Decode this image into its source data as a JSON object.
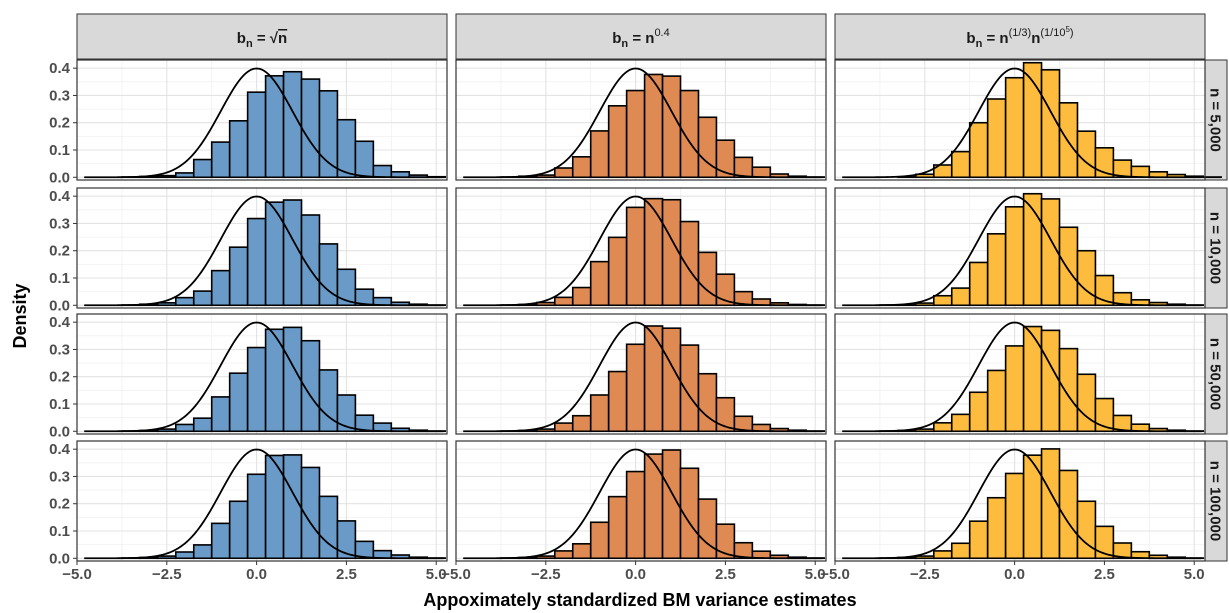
{
  "chart_data": {
    "type": "bar",
    "xlabel": "Appoximately standardized BM variance estimates",
    "ylabel": "Density",
    "xlim": [
      -5.0,
      5.3
    ],
    "ylim": [
      -0.01,
      0.43
    ],
    "x_ticks": [
      -5.0,
      -2.5,
      0.0,
      2.5,
      5.0
    ],
    "x_tick_labels": [
      "−5.0",
      "−2.5",
      "0.0",
      "2.5",
      "5.0"
    ],
    "y_ticks": [
      0.0,
      0.1,
      0.2,
      0.3,
      0.4
    ],
    "y_tick_labels": [
      "0.0",
      "0.1",
      "0.2",
      "0.3",
      "0.4"
    ],
    "bin_width": 0.5,
    "bin_start": -4.75,
    "grid": true,
    "overlay": "standard normal density curve",
    "columns": [
      {
        "strip": {
          "b": "b",
          "sub": "n",
          "eq": " = ",
          "sqrt_sign": "√",
          "sqrt_arg": "n"
        },
        "color": "#6a9ac8"
      },
      {
        "strip": {
          "b": "b",
          "sub": "n",
          "eq": " = ",
          "base": "n",
          "sup": "0.4"
        },
        "color": "#df8a52"
      },
      {
        "strip": {
          "b": "b",
          "sub": "n",
          "eq": " = ",
          "base1": "n",
          "sup1": "(1/3)",
          "base2": "n",
          "sup2a": "(1/10",
          "sup2exp": "5",
          "sup2b": ")"
        },
        "color": "#fdbc3e"
      }
    ],
    "rows": [
      {
        "strip": "n =  5,000"
      },
      {
        "strip": "n = 10,000"
      },
      {
        "strip": "n = 50,000"
      },
      {
        "strip": "n = 100,000"
      }
    ],
    "panels": [
      [
        {
          "densities": [
            0,
            0,
            0.001,
            0.003,
            0.006,
            0.016,
            0.065,
            0.129,
            0.207,
            0.312,
            0.372,
            0.387,
            0.36,
            0.317,
            0.211,
            0.132,
            0.043,
            0.02,
            0.008,
            0.002,
            0,
            0
          ]
        },
        {
          "densities": [
            0,
            0,
            0.001,
            0.004,
            0.008,
            0.034,
            0.075,
            0.17,
            0.262,
            0.318,
            0.377,
            0.371,
            0.318,
            0.22,
            0.136,
            0.073,
            0.037,
            0.012,
            0.004,
            0.001,
            0,
            0
          ]
        },
        {
          "densities": [
            0,
            0,
            0,
            0.002,
            0.011,
            0.045,
            0.094,
            0.2,
            0.287,
            0.365,
            0.42,
            0.394,
            0.273,
            0.169,
            0.108,
            0.063,
            0.04,
            0.02,
            0.01,
            0.004,
            0.001,
            0
          ]
        }
      ],
      [
        {
          "densities": [
            0,
            0,
            0.001,
            0.004,
            0.009,
            0.028,
            0.052,
            0.127,
            0.213,
            0.318,
            0.378,
            0.386,
            0.331,
            0.225,
            0.132,
            0.059,
            0.028,
            0.011,
            0.004,
            0.001,
            0,
            0
          ]
        },
        {
          "densities": [
            0,
            0,
            0.001,
            0.003,
            0.01,
            0.029,
            0.065,
            0.16,
            0.249,
            0.359,
            0.391,
            0.387,
            0.307,
            0.194,
            0.114,
            0.05,
            0.023,
            0.009,
            0.003,
            0.001,
            0,
            0
          ]
        },
        {
          "densities": [
            0,
            0,
            0.001,
            0.002,
            0.008,
            0.035,
            0.063,
            0.157,
            0.262,
            0.361,
            0.409,
            0.39,
            0.286,
            0.2,
            0.109,
            0.046,
            0.02,
            0.01,
            0.004,
            0.001,
            0,
            0
          ]
        }
      ],
      [
        {
          "densities": [
            0,
            0,
            0.001,
            0.003,
            0.008,
            0.025,
            0.048,
            0.126,
            0.213,
            0.307,
            0.374,
            0.381,
            0.332,
            0.225,
            0.133,
            0.059,
            0.03,
            0.011,
            0.004,
            0.001,
            0,
            0
          ]
        },
        {
          "densities": [
            0,
            0,
            0.001,
            0.003,
            0.008,
            0.03,
            0.057,
            0.133,
            0.219,
            0.319,
            0.386,
            0.378,
            0.316,
            0.211,
            0.123,
            0.055,
            0.025,
            0.01,
            0.004,
            0.001,
            0,
            0
          ]
        },
        {
          "densities": [
            0,
            0,
            0.001,
            0.003,
            0.008,
            0.031,
            0.062,
            0.143,
            0.223,
            0.313,
            0.384,
            0.37,
            0.303,
            0.209,
            0.12,
            0.058,
            0.026,
            0.01,
            0.004,
            0.001,
            0,
            0
          ]
        }
      ],
      [
        {
          "densities": [
            0,
            0,
            0.001,
            0.003,
            0.008,
            0.023,
            0.049,
            0.128,
            0.209,
            0.308,
            0.377,
            0.379,
            0.333,
            0.227,
            0.137,
            0.062,
            0.028,
            0.012,
            0.004,
            0.001,
            0,
            0
          ]
        },
        {
          "densities": [
            0,
            0,
            0.001,
            0.003,
            0.008,
            0.027,
            0.053,
            0.132,
            0.226,
            0.318,
            0.382,
            0.397,
            0.33,
            0.217,
            0.125,
            0.057,
            0.026,
            0.011,
            0.004,
            0.001,
            0,
            0
          ]
        },
        {
          "densities": [
            0,
            0,
            0.001,
            0.003,
            0.008,
            0.027,
            0.055,
            0.136,
            0.222,
            0.311,
            0.378,
            0.401,
            0.322,
            0.209,
            0.117,
            0.056,
            0.024,
            0.011,
            0.004,
            0.001,
            0,
            0
          ]
        }
      ]
    ]
  }
}
